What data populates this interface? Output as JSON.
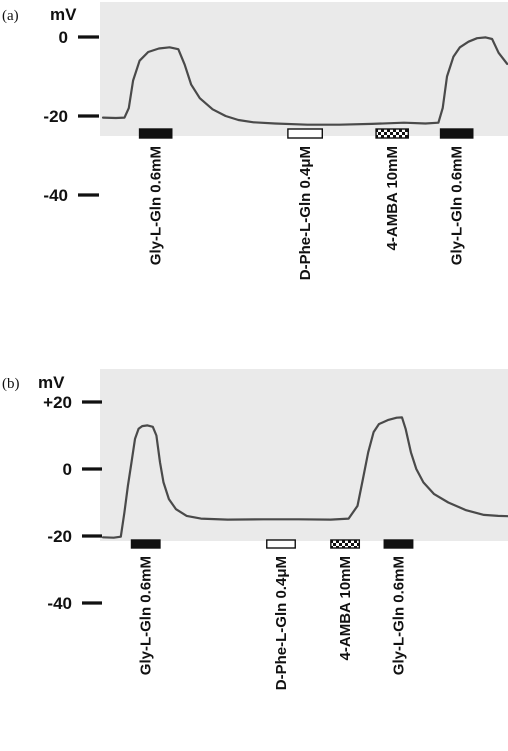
{
  "chart_data": [
    {
      "type": "line",
      "panel_label": "(a)",
      "ylabel": "mV",
      "yticks": [
        {
          "value": 0,
          "label": "0"
        },
        {
          "value": -20,
          "label": "-20"
        },
        {
          "value": -40,
          "label": "-40"
        }
      ],
      "trace": [
        [
          0,
          -20.4
        ],
        [
          6,
          -20.5
        ],
        [
          10,
          -20.4
        ],
        [
          12,
          -18
        ],
        [
          14,
          -11
        ],
        [
          17,
          -6
        ],
        [
          21,
          -3.8
        ],
        [
          26,
          -2.9
        ],
        [
          31,
          -2.6
        ],
        [
          35,
          -3.1
        ],
        [
          38,
          -7
        ],
        [
          41,
          -12
        ],
        [
          45,
          -15.5
        ],
        [
          51,
          -18.3
        ],
        [
          57,
          -20
        ],
        [
          63,
          -21
        ],
        [
          70,
          -21.6
        ],
        [
          80,
          -21.9
        ],
        [
          95,
          -22.2
        ],
        [
          110,
          -22.2
        ],
        [
          125,
          -22
        ],
        [
          140,
          -21.7
        ],
        [
          150,
          -21.9
        ],
        [
          156,
          -21.7
        ],
        [
          158,
          -18
        ],
        [
          160,
          -10
        ],
        [
          163,
          -5
        ],
        [
          166,
          -2.6
        ],
        [
          170,
          -1.2
        ],
        [
          174,
          -0.3
        ],
        [
          178,
          -0.1
        ],
        [
          181,
          -0.5
        ],
        [
          184,
          -4
        ],
        [
          188,
          -6.8
        ]
      ],
      "applications": [
        {
          "label": "Gly-L-Gln 0.6mM",
          "style": "solid",
          "start": 17,
          "end": 32
        },
        {
          "label": "D-Phe-L-Gln 0.4μM",
          "style": "open",
          "start": 86,
          "end": 102
        },
        {
          "label": "4-AMBA 10mM",
          "style": "checkered",
          "start": 127,
          "end": 142
        },
        {
          "label": "Gly-L-Gln 0.6mM",
          "style": "solid",
          "start": 157,
          "end": 172
        }
      ]
    },
    {
      "type": "line",
      "panel_label": "(b)",
      "ylabel": "mV",
      "yticks": [
        {
          "value": 20,
          "label": "+20"
        },
        {
          "value": 0,
          "label": "0"
        },
        {
          "value": -20,
          "label": "-20"
        },
        {
          "value": -40,
          "label": "-40"
        }
      ],
      "trace": [
        [
          0,
          -20.4
        ],
        [
          6,
          -20.5
        ],
        [
          10,
          -20.2
        ],
        [
          12,
          -13
        ],
        [
          14,
          -5
        ],
        [
          16,
          2
        ],
        [
          18,
          9
        ],
        [
          20,
          12
        ],
        [
          22,
          12.8
        ],
        [
          25,
          13
        ],
        [
          28,
          12.6
        ],
        [
          30,
          10
        ],
        [
          32,
          2
        ],
        [
          34,
          -4
        ],
        [
          37,
          -9
        ],
        [
          41,
          -12
        ],
        [
          47,
          -14
        ],
        [
          55,
          -14.8
        ],
        [
          70,
          -15.1
        ],
        [
          90,
          -15
        ],
        [
          110,
          -15
        ],
        [
          128,
          -15.1
        ],
        [
          138,
          -14.8
        ],
        [
          143,
          -11
        ],
        [
          146,
          -3
        ],
        [
          149,
          5
        ],
        [
          152,
          11
        ],
        [
          155,
          13.4
        ],
        [
          160,
          14.6
        ],
        [
          165,
          15.3
        ],
        [
          168,
          15.4
        ],
        [
          170,
          12
        ],
        [
          173,
          5
        ],
        [
          176,
          0
        ],
        [
          180,
          -4
        ],
        [
          186,
          -7.5
        ],
        [
          194,
          -10
        ],
        [
          204,
          -12.3
        ],
        [
          214,
          -13.7
        ],
        [
          222,
          -14
        ],
        [
          228,
          -14.1
        ]
      ],
      "applications": [
        {
          "label": "Gly-L-Gln 0.6mM",
          "style": "solid",
          "start": 16,
          "end": 32
        },
        {
          "label": "D-Phe-L-Gln 0.4μM",
          "style": "open",
          "start": 92,
          "end": 108
        },
        {
          "label": "4-AMBA 10mM",
          "style": "checkered",
          "start": 128,
          "end": 144
        },
        {
          "label": "Gly-L-Gln 0.6mM",
          "style": "solid",
          "start": 158,
          "end": 174
        }
      ]
    }
  ]
}
